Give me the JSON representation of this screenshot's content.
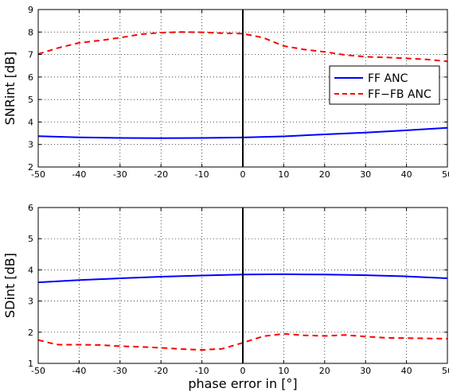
{
  "chart_data": [
    {
      "type": "line",
      "ylabel": "SNRint [dB]",
      "xlim": [
        -50,
        50
      ],
      "ylim": [
        2,
        9
      ],
      "xticks": [
        "-50",
        "-40",
        "-30",
        "-20",
        "-10",
        "0",
        "10",
        "20",
        "30",
        "40",
        "50"
      ],
      "yticks": [
        "2",
        "3",
        "4",
        "5",
        "6",
        "7",
        "8",
        "9"
      ],
      "grid": true,
      "vline_x": 0,
      "legend": {
        "position": "right",
        "entries": [
          "FF ANC",
          "FF−FB ANC"
        ]
      },
      "series": [
        {
          "name": "FF ANC",
          "color": "#0000ff",
          "style": "solid",
          "x": [
            -50,
            -40,
            -30,
            -20,
            -10,
            0,
            10,
            20,
            30,
            40,
            50
          ],
          "y": [
            3.37,
            3.32,
            3.29,
            3.28,
            3.29,
            3.31,
            3.36,
            3.45,
            3.53,
            3.63,
            3.74
          ]
        },
        {
          "name": "FF−FB ANC",
          "color": "#ff0000",
          "style": "dashed",
          "x": [
            -50,
            -45,
            -40,
            -35,
            -30,
            -25,
            -20,
            -15,
            -10,
            -5,
            0,
            5,
            10,
            15,
            20,
            25,
            30,
            35,
            40,
            45,
            50
          ],
          "y": [
            7.02,
            7.3,
            7.52,
            7.62,
            7.75,
            7.9,
            7.97,
            8.0,
            7.99,
            7.95,
            7.93,
            7.75,
            7.38,
            7.22,
            7.12,
            6.98,
            6.9,
            6.87,
            6.83,
            6.78,
            6.7
          ]
        }
      ]
    },
    {
      "type": "line",
      "ylabel": "SDint [dB]",
      "xlabel": "phase error in [°]",
      "xlim": [
        -50,
        50
      ],
      "ylim": [
        1,
        6
      ],
      "xticks": [
        "-50",
        "-40",
        "-30",
        "-20",
        "-10",
        "0",
        "10",
        "20",
        "30",
        "40",
        "50"
      ],
      "yticks": [
        "1",
        "2",
        "3",
        "4",
        "5",
        "6"
      ],
      "grid": true,
      "vline_x": 0,
      "series": [
        {
          "name": "FF ANC",
          "color": "#0000ff",
          "style": "solid",
          "x": [
            -50,
            -40,
            -30,
            -20,
            -10,
            0,
            10,
            20,
            30,
            40,
            50
          ],
          "y": [
            3.6,
            3.67,
            3.73,
            3.78,
            3.82,
            3.85,
            3.86,
            3.85,
            3.83,
            3.79,
            3.73
          ]
        },
        {
          "name": "FF−FB ANC",
          "color": "#ff0000",
          "style": "dashed",
          "x": [
            -50,
            -47,
            -45,
            -40,
            -35,
            -30,
            -25,
            -20,
            -15,
            -10,
            -5,
            0,
            5,
            10,
            15,
            20,
            25,
            30,
            35,
            40,
            45,
            50
          ],
          "y": [
            1.75,
            1.65,
            1.6,
            1.6,
            1.59,
            1.55,
            1.53,
            1.5,
            1.46,
            1.43,
            1.47,
            1.66,
            1.87,
            1.95,
            1.9,
            1.88,
            1.91,
            1.86,
            1.82,
            1.81,
            1.8,
            1.79
          ]
        }
      ]
    }
  ]
}
